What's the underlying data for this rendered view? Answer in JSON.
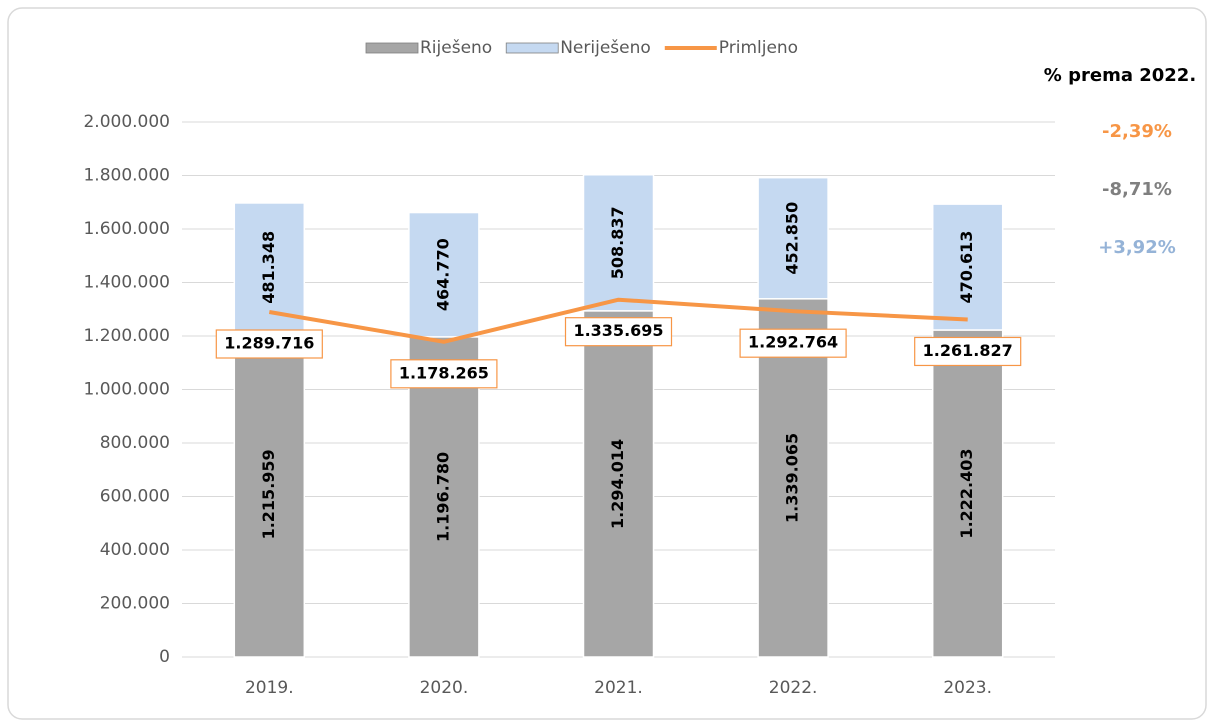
{
  "chart_data": {
    "type": "bar",
    "categories": [
      "2019.",
      "2020.",
      "2021.",
      "2022.",
      "2023."
    ],
    "series": [
      {
        "name": "Riješeno",
        "color": "#a6a6a6",
        "type": "bar",
        "values": [
          1215959,
          1196780,
          1294014,
          1339065,
          1222403
        ],
        "value_labels": [
          "1.215.959",
          "1.196.780",
          "1.294.014",
          "1.339.065",
          "1.222.403"
        ]
      },
      {
        "name": "Neriješeno",
        "color": "#c5d9f1",
        "type": "bar",
        "values": [
          481348,
          464770,
          508837,
          452850,
          470613
        ],
        "value_labels": [
          "481.348",
          "464.770",
          "508.837",
          "452.850",
          "470.613"
        ]
      },
      {
        "name": "Primljeno",
        "color": "#f79646",
        "type": "line",
        "values": [
          1289716,
          1178265,
          1335695,
          1292764,
          1261827
        ],
        "value_labels": [
          "1.289.716",
          "1.178.265",
          "1.335.695",
          "1.292.764",
          "1.261.827"
        ]
      }
    ],
    "stacked": true,
    "ylim": [
      0,
      2000000
    ],
    "yticks": [
      0,
      {
        "value": 200000,
        "label": "200.000"
      },
      {
        "value": 400000,
        "label": "400.000"
      },
      {
        "value": 600000,
        "label": "600.000"
      },
      {
        "value": 800000,
        "label": "800.000"
      },
      {
        "value": 1000000,
        "label": "1.000.000"
      },
      {
        "value": 1200000,
        "label": "1.200.000"
      },
      {
        "value": 1400000,
        "label": "1.400.000"
      },
      {
        "value": 1600000,
        "label": "1.600.000"
      },
      {
        "value": 1800000,
        "label": "1.800.000"
      },
      {
        "value": 2000000,
        "label": "2.000.000"
      }
    ],
    "grid": true,
    "legend": "top",
    "annotation_title": "% prema 2022.",
    "annotations": [
      {
        "text": "-2,39%",
        "color": "#f79646"
      },
      {
        "text": "-8,71%",
        "color": "#7f7f7f"
      },
      {
        "text": "+3,92%",
        "color": "#95b3d7"
      }
    ]
  }
}
